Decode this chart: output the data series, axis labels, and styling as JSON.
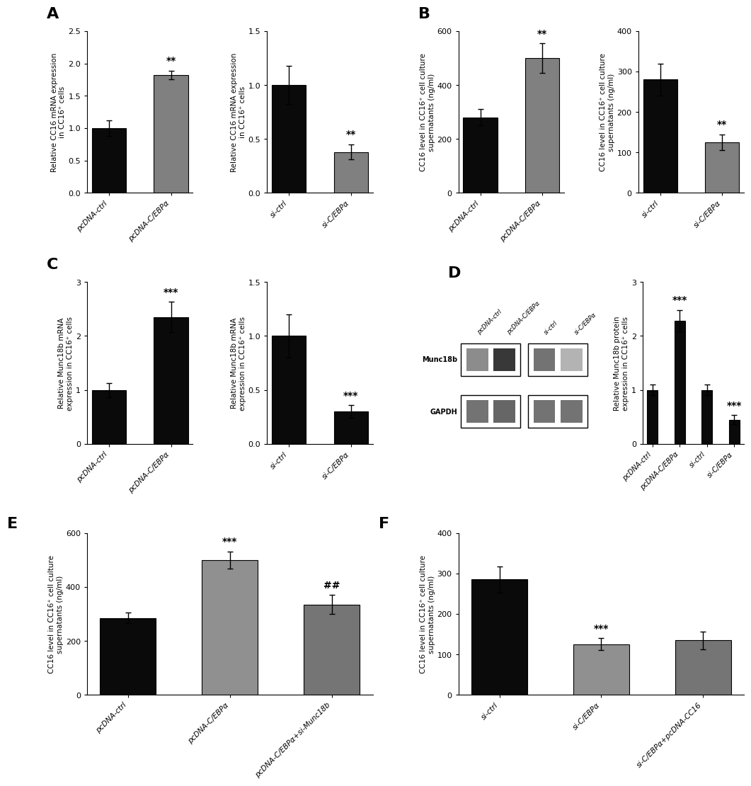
{
  "panel_A1": {
    "categories": [
      "pcDNA-ctrl",
      "pcDNA-C/EBPα"
    ],
    "values": [
      1.0,
      1.82
    ],
    "errors": [
      0.12,
      0.07
    ],
    "colors": [
      "#0a0a0a",
      "#808080"
    ],
    "ylabel": "Relative CC16 mRNA expression\nin CC16⁺ cells",
    "ylim": [
      0,
      2.5
    ],
    "yticks": [
      0.0,
      0.5,
      1.0,
      1.5,
      2.0,
      2.5
    ],
    "sig": [
      "",
      "**"
    ]
  },
  "panel_A2": {
    "categories": [
      "si-ctrl",
      "si-C/EBPα"
    ],
    "values": [
      1.0,
      0.38
    ],
    "errors": [
      0.18,
      0.07
    ],
    "colors": [
      "#0a0a0a",
      "#808080"
    ],
    "ylabel": "Relative CC16 mRNA expression\nin CC16⁺ cells",
    "ylim": [
      0,
      1.5
    ],
    "yticks": [
      0.0,
      0.5,
      1.0,
      1.5
    ],
    "sig": [
      "",
      "**"
    ]
  },
  "panel_B1": {
    "categories": [
      "pcDNA-ctrl",
      "pcDNA-C/EBPα"
    ],
    "values": [
      280,
      500
    ],
    "errors": [
      30,
      55
    ],
    "colors": [
      "#0a0a0a",
      "#808080"
    ],
    "ylabel": "CC16 level in CC16⁺ cell culture\nsupernatants (ng/ml)",
    "ylim": [
      0,
      600
    ],
    "yticks": [
      0,
      200,
      400,
      600
    ],
    "sig": [
      "",
      "**"
    ]
  },
  "panel_B2": {
    "categories": [
      "si-ctrl",
      "si-C/EBPα"
    ],
    "values": [
      280,
      125
    ],
    "errors": [
      40,
      20
    ],
    "colors": [
      "#0a0a0a",
      "#808080"
    ],
    "ylabel": "CC16 level in CC16⁺ cell culture\nsupernatants (ng/ml)",
    "ylim": [
      0,
      400
    ],
    "yticks": [
      0,
      100,
      200,
      300,
      400
    ],
    "sig": [
      "",
      "**"
    ]
  },
  "panel_C1": {
    "categories": [
      "pcDNA-ctrl",
      "pcDNA-C/EBPα"
    ],
    "values": [
      1.0,
      2.35
    ],
    "errors": [
      0.13,
      0.28
    ],
    "colors": [
      "#0a0a0a",
      "#0a0a0a"
    ],
    "ylabel": "Relative Munc18b mRNA\nexpression in CC16⁺ cells",
    "ylim": [
      0,
      3
    ],
    "yticks": [
      0,
      1,
      2,
      3
    ],
    "sig": [
      "",
      "***"
    ]
  },
  "panel_C2": {
    "categories": [
      "si-ctrl",
      "si-C/EBPα"
    ],
    "values": [
      1.0,
      0.3
    ],
    "errors": [
      0.2,
      0.06
    ],
    "colors": [
      "#0a0a0a",
      "#0a0a0a"
    ],
    "ylabel": "Relative Munc18b mRNA\nexpression in CC16⁺ cells",
    "ylim": [
      0,
      1.5
    ],
    "yticks": [
      0.0,
      0.5,
      1.0,
      1.5
    ],
    "sig": [
      "",
      "***"
    ]
  },
  "panel_D_bar": {
    "categories": [
      "pcDNA-ctrl",
      "pcDNA-C/EBPα",
      "si-ctrl",
      "si-C/EBPα"
    ],
    "values": [
      1.0,
      2.28,
      1.0,
      0.45
    ],
    "errors": [
      0.1,
      0.2,
      0.1,
      0.08
    ],
    "colors": [
      "#0a0a0a",
      "#0a0a0a",
      "#0a0a0a",
      "#0a0a0a"
    ],
    "ylabel": "Relative Munc18b protein\nexpression in CC16⁺ cells",
    "ylim": [
      0,
      3
    ],
    "yticks": [
      0,
      1,
      2,
      3
    ],
    "sig": [
      "",
      "***",
      "",
      "***"
    ]
  },
  "panel_E": {
    "categories": [
      "pcDNA-ctrl",
      "pcDNA-C/EBPα",
      "pcDNA-C/EBPα+si-Munc18b"
    ],
    "values": [
      285,
      500,
      335
    ],
    "errors": [
      20,
      32,
      35
    ],
    "colors": [
      "#0a0a0a",
      "#909090",
      "#757575"
    ],
    "ylabel": "CC16 level in CC16⁺ cell culture\nsupernatants (ng/ml)",
    "ylim": [
      0,
      600
    ],
    "yticks": [
      0,
      200,
      400,
      600
    ],
    "sig": [
      "",
      "***",
      "##"
    ]
  },
  "panel_F": {
    "categories": [
      "si-ctrl",
      "si-C/EBPα",
      "si-C/EBPα+pcDNA-CC16"
    ],
    "values": [
      285,
      125,
      135
    ],
    "errors": [
      32,
      15,
      22
    ],
    "colors": [
      "#0a0a0a",
      "#909090",
      "#757575"
    ],
    "ylabel": "CC16 level in CC16⁺ cell culture\nsupernatants (ng/ml)",
    "ylim": [
      0,
      400
    ],
    "yticks": [
      0,
      100,
      200,
      300,
      400
    ],
    "sig": [
      "",
      "***",
      ""
    ]
  },
  "wb_headers_left": [
    "pcDNA-ctrl",
    "pcDNA-C/EBPα"
  ],
  "wb_headers_right": [
    "si-ctrl",
    "si-C/EBPα"
  ],
  "wb_label_munc18b": "Munc18b",
  "wb_label_gapdh": "GAPDH",
  "background_color": "#ffffff",
  "bar_width": 0.55,
  "capsize": 3,
  "label_fontsize": 7.5,
  "tick_fontsize": 8,
  "sig_fontsize": 10,
  "panel_label_fontsize": 16,
  "panel_label_fontweight": "bold"
}
